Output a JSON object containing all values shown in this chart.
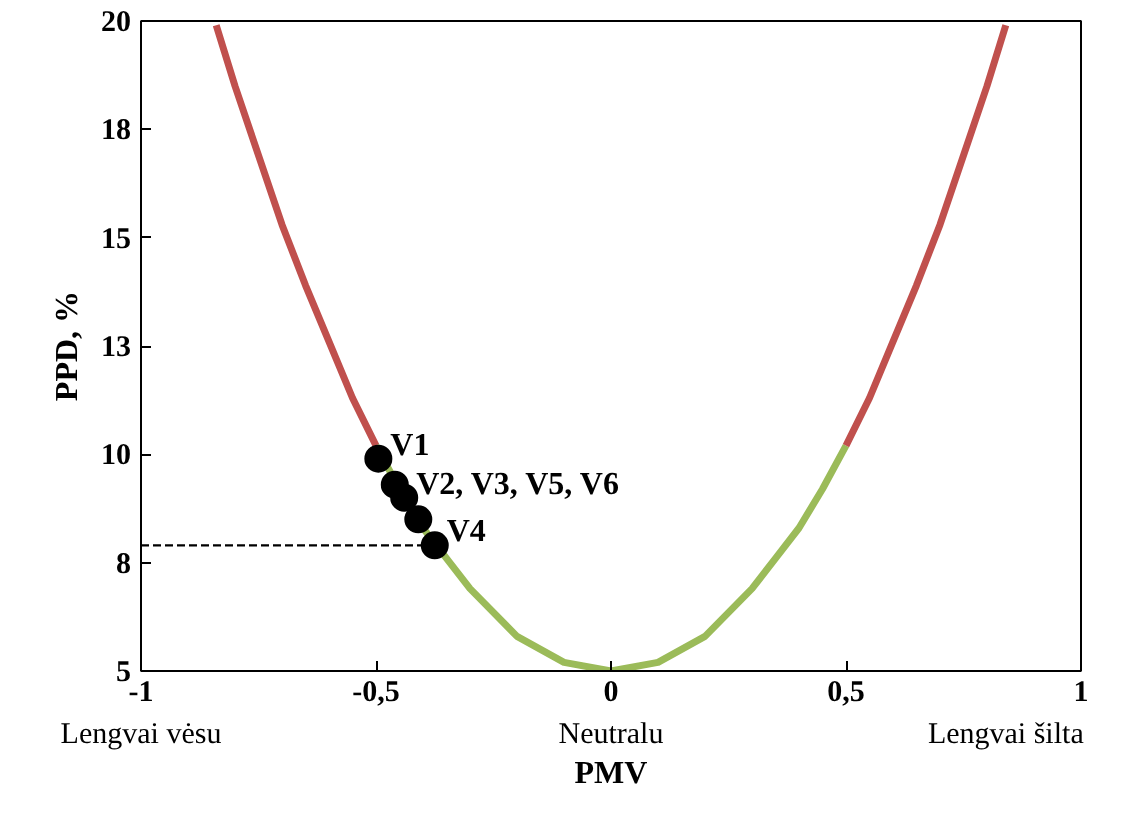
{
  "chart_data": {
    "type": "line",
    "xlabel": "PMV",
    "ylabel": "PPD, %",
    "xlim": [
      -1,
      1
    ],
    "xticks": [
      {
        "value": -1,
        "label": "-1"
      },
      {
        "value": -0.5,
        "label": "-0,5"
      },
      {
        "value": 0,
        "label": "0"
      },
      {
        "value": 0.5,
        "label": "0,5"
      },
      {
        "value": 1,
        "label": "1"
      }
    ],
    "ylim": [
      5,
      20
    ],
    "yticks": [
      5,
      {
        "value": 7.5,
        "label": "8"
      },
      10,
      {
        "value": 12.5,
        "label": "13"
      },
      15,
      {
        "value": 17.5,
        "label": "18"
      },
      20
    ],
    "grid": false,
    "series": [
      {
        "color": "#c0504d",
        "line_style": "solid",
        "x": [
          -0.84,
          -0.8,
          -0.75,
          -0.7,
          -0.65,
          -0.6,
          -0.55,
          -0.5
        ],
        "values": [
          19.9,
          18.5,
          16.9,
          15.3,
          13.9,
          12.6,
          11.3,
          10.2
        ]
      },
      {
        "color": "#9bbb59",
        "line_style": "solid",
        "x": [
          -0.5,
          -0.45,
          -0.4,
          -0.35,
          -0.3,
          -0.2,
          -0.1,
          0,
          0.1,
          0.2,
          0.3,
          0.35,
          0.4,
          0.45,
          0.5
        ],
        "values": [
          10.2,
          9.2,
          8.3,
          7.6,
          6.9,
          5.8,
          5.2,
          5.0,
          5.2,
          5.8,
          6.9,
          7.6,
          8.3,
          9.2,
          10.2
        ]
      },
      {
        "color": "#c0504d",
        "line_style": "solid",
        "x": [
          0.5,
          0.55,
          0.6,
          0.65,
          0.7,
          0.75,
          0.8,
          0.84
        ],
        "values": [
          10.2,
          11.3,
          12.6,
          13.9,
          15.3,
          16.9,
          18.5,
          19.9
        ]
      },
      {
        "color": "#000000",
        "line_style": "dashed",
        "x": [
          -1,
          -0.375
        ],
        "values": [
          7.9,
          7.9
        ]
      },
      {
        "type": "scatter",
        "color": "#000000",
        "marker": "circle",
        "x": [
          -0.495,
          -0.46,
          -0.44,
          -0.41,
          -0.375
        ],
        "values": [
          9.9,
          9.3,
          9.0,
          8.5,
          7.9
        ]
      }
    ],
    "annotations": [
      {
        "text": "V1",
        "x": -0.495,
        "y": 9.9
      },
      {
        "text": "V2, V3, V5, V6",
        "x": -0.44,
        "y": 9.0
      },
      {
        "text": "V4",
        "x": -0.375,
        "y": 7.9
      },
      "Lengvai vėsu",
      "Neutralu",
      "Lengvai šilta"
    ]
  }
}
